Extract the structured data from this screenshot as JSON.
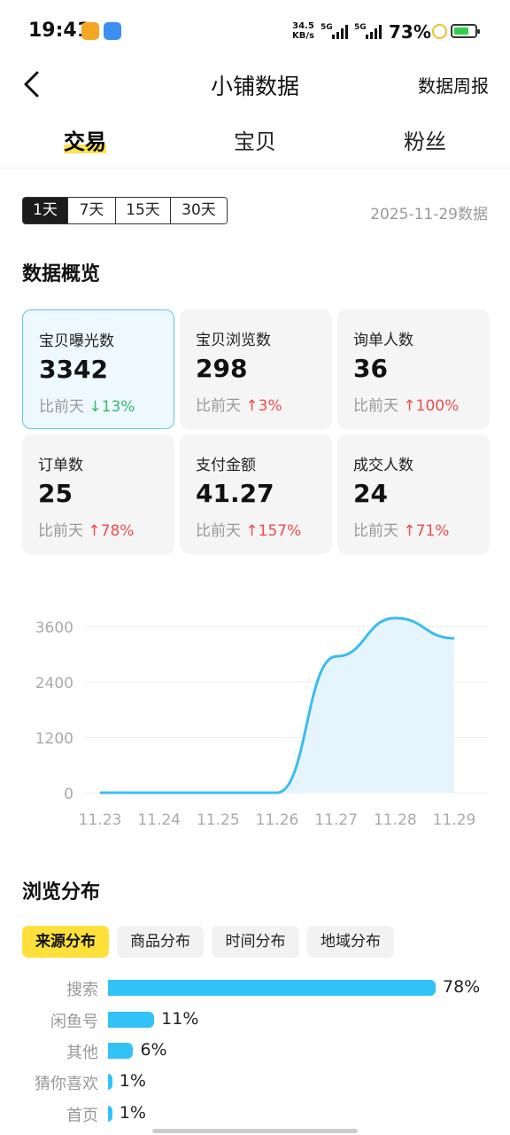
{
  "status_bar": {
    "time": "19:41",
    "net_speed_value": "34.5",
    "net_speed_unit": "KB/s",
    "signal1_label": "5G",
    "signal2_label": "5G",
    "battery_percent": "73%",
    "battery_level": 0.73
  },
  "header": {
    "title": "小铺数据",
    "action": "数据周报"
  },
  "tabs": [
    {
      "label": "交易",
      "active": true
    },
    {
      "label": "宝贝",
      "active": false
    },
    {
      "label": "粉丝",
      "active": false
    }
  ],
  "range": {
    "options": [
      "1天",
      "7天",
      "15天",
      "30天"
    ],
    "selected": "1天",
    "date_label": "2025-11-29数据"
  },
  "overview": {
    "title": "数据概览",
    "compare_prefix": "比前天",
    "cards": [
      {
        "label": "宝贝曝光数",
        "value": "3342",
        "direction": "down",
        "change": "13%",
        "selected": true
      },
      {
        "label": "宝贝浏览数",
        "value": "298",
        "direction": "up",
        "change": "3%",
        "selected": false
      },
      {
        "label": "询单人数",
        "value": "36",
        "direction": "up",
        "change": "100%",
        "selected": false
      },
      {
        "label": "订单数",
        "value": "25",
        "direction": "up",
        "change": "78%",
        "selected": false
      },
      {
        "label": "支付金额",
        "value": "41.27",
        "direction": "up",
        "change": "157%",
        "selected": false
      },
      {
        "label": "成交人数",
        "value": "24",
        "direction": "up",
        "change": "71%",
        "selected": false
      }
    ]
  },
  "chart_data": {
    "type": "area",
    "x": [
      "11.23",
      "11.24",
      "11.25",
      "11.26",
      "11.27",
      "11.28",
      "11.29"
    ],
    "values": [
      0,
      0,
      0,
      0,
      2950,
      3780,
      3342
    ],
    "yticks": [
      0,
      1200,
      2400,
      3600
    ],
    "ylim": [
      0,
      3800
    ],
    "grid": true,
    "line_color": "#3bbcf0",
    "fill_color": "#e6f5fd"
  },
  "browse": {
    "title": "浏览分布",
    "tabs": [
      "来源分布",
      "商品分布",
      "时间分布",
      "地域分布"
    ],
    "selected_tab": "来源分布",
    "rows": [
      {
        "label": "搜索",
        "pct_text": "78%",
        "pct": 78
      },
      {
        "label": "闲鱼号",
        "pct_text": "11%",
        "pct": 11
      },
      {
        "label": "其他",
        "pct_text": "6%",
        "pct": 6
      },
      {
        "label": "猜你喜欢",
        "pct_text": "1%",
        "pct": 1
      },
      {
        "label": "首页",
        "pct_text": "1%",
        "pct": 1
      }
    ],
    "bar_color": "#31c2f7"
  }
}
